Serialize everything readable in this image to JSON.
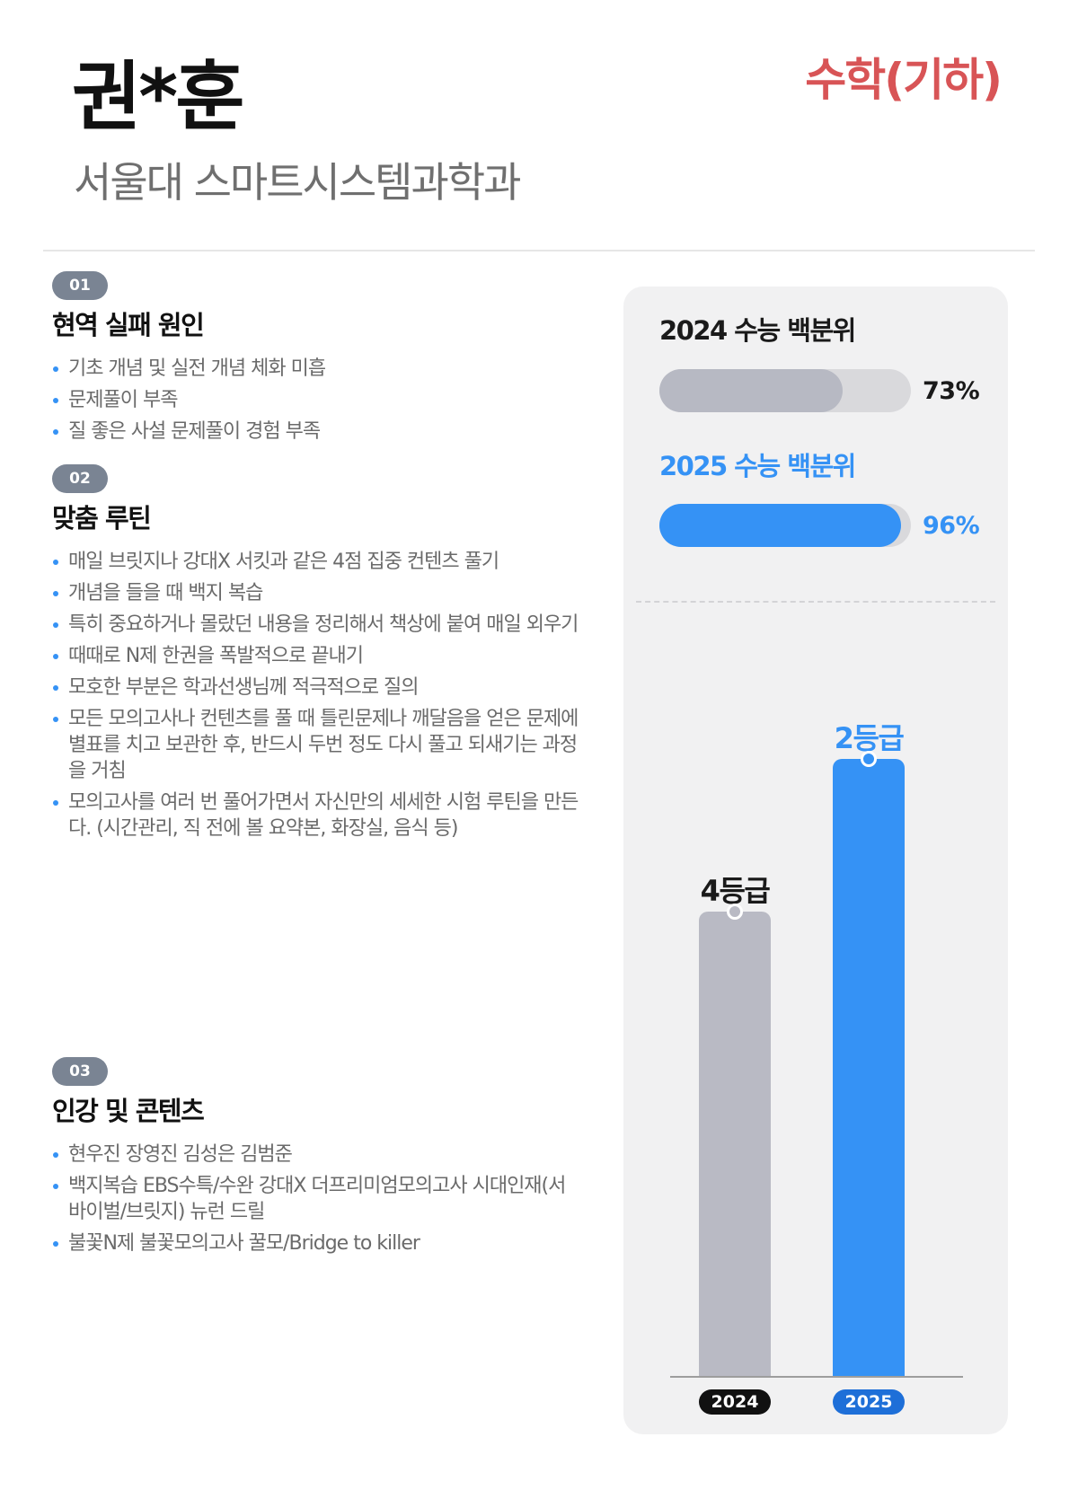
{
  "header": {
    "name": "권*훈",
    "department": "서울대 스마트시스템과학과",
    "subject": "수학(기하)"
  },
  "sections": [
    {
      "number": "01",
      "title": "현역 실패 원인",
      "items": [
        "기초 개념 및 실전 개념 체화 미흡",
        "문제풀이 부족",
        "질 좋은 사설 문제풀이 경험 부족"
      ]
    },
    {
      "number": "02",
      "title": "맞춤 루틴",
      "items": [
        "매일 브릿지나 강대X 서킷과 같은 4점 집중 컨텐츠 풀기",
        "개념을 들을 때 백지 복습",
        "특히 중요하거나 몰랐던 내용을 정리해서 책상에 붙여 매일 외우기",
        "때때로 N제 한권을 폭발적으로 끝내기",
        "모호한 부분은 학과선생님께 적극적으로 질의",
        "모든 모의고사나 컨텐츠를 풀 때 틀린문제나 깨달음을 얻은 문제에 별표를 치고 보관한 후, 반드시 두번 정도 다시 풀고 되새기는 과정을 거침",
        "모의고사를 여러 번 풀어가면서 자신만의 세세한 시험 루틴을 만든다. (시간관리, 직 전에 볼 요약본, 화장실, 음식 등)"
      ]
    },
    {
      "number": "03",
      "title": "인강 및 콘텐츠",
      "items": [
        "현우진 장영진 김성은 김범준",
        "백지복습 EBS수특/수완 강대X 더프리미엄모의고사 시대인재(서바이벌/브릿지) 뉴런 드릴",
        "불꽃N제 불꽃모의고사 꿀모/Bridge to killer"
      ]
    }
  ],
  "percentiles": {
    "y2024": {
      "label": "2024 수능 백분위",
      "value_text": "73%",
      "fraction": 0.73
    },
    "y2025": {
      "label": "2025 수능 백분위",
      "value_text": "96%",
      "fraction": 0.96
    }
  },
  "grades": {
    "y2024": {
      "year": "2024",
      "grade": "4등급"
    },
    "y2025": {
      "year": "2025",
      "grade": "2등급"
    }
  },
  "colors": {
    "accent_blue": "#3592f5",
    "subject_red": "#d85456",
    "bar_gray": "#b9bac4"
  }
}
